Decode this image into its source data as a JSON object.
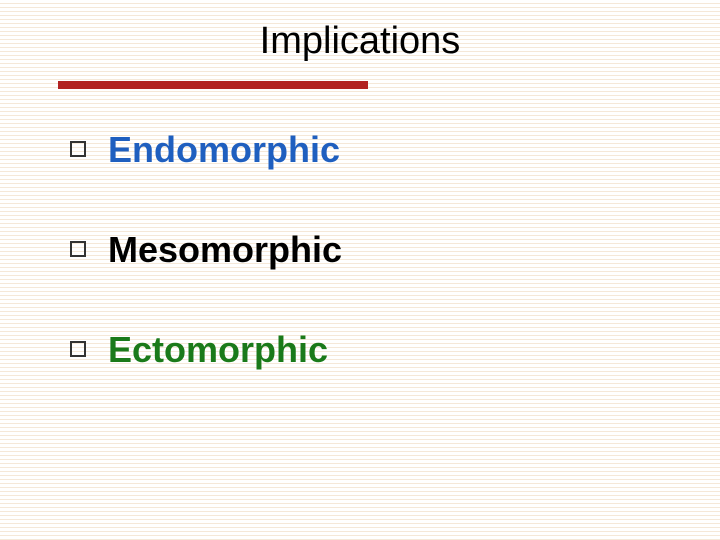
{
  "slide": {
    "title": "Implications",
    "title_color": "#000000",
    "title_fontsize": 38,
    "accent_line_color": "#b22222",
    "accent_line_width": 310,
    "accent_line_height": 8,
    "background_stripe_color": "#f5e8d8",
    "bullets": [
      {
        "text": "Endomorphic",
        "color": "#1f5fbf"
      },
      {
        "text": "Mesomorphic",
        "color": "#000000"
      },
      {
        "text": "Ectomorphic",
        "color": "#1a7a1a"
      }
    ],
    "bullet_fontsize": 36,
    "bullet_marker_color": "#333333"
  }
}
